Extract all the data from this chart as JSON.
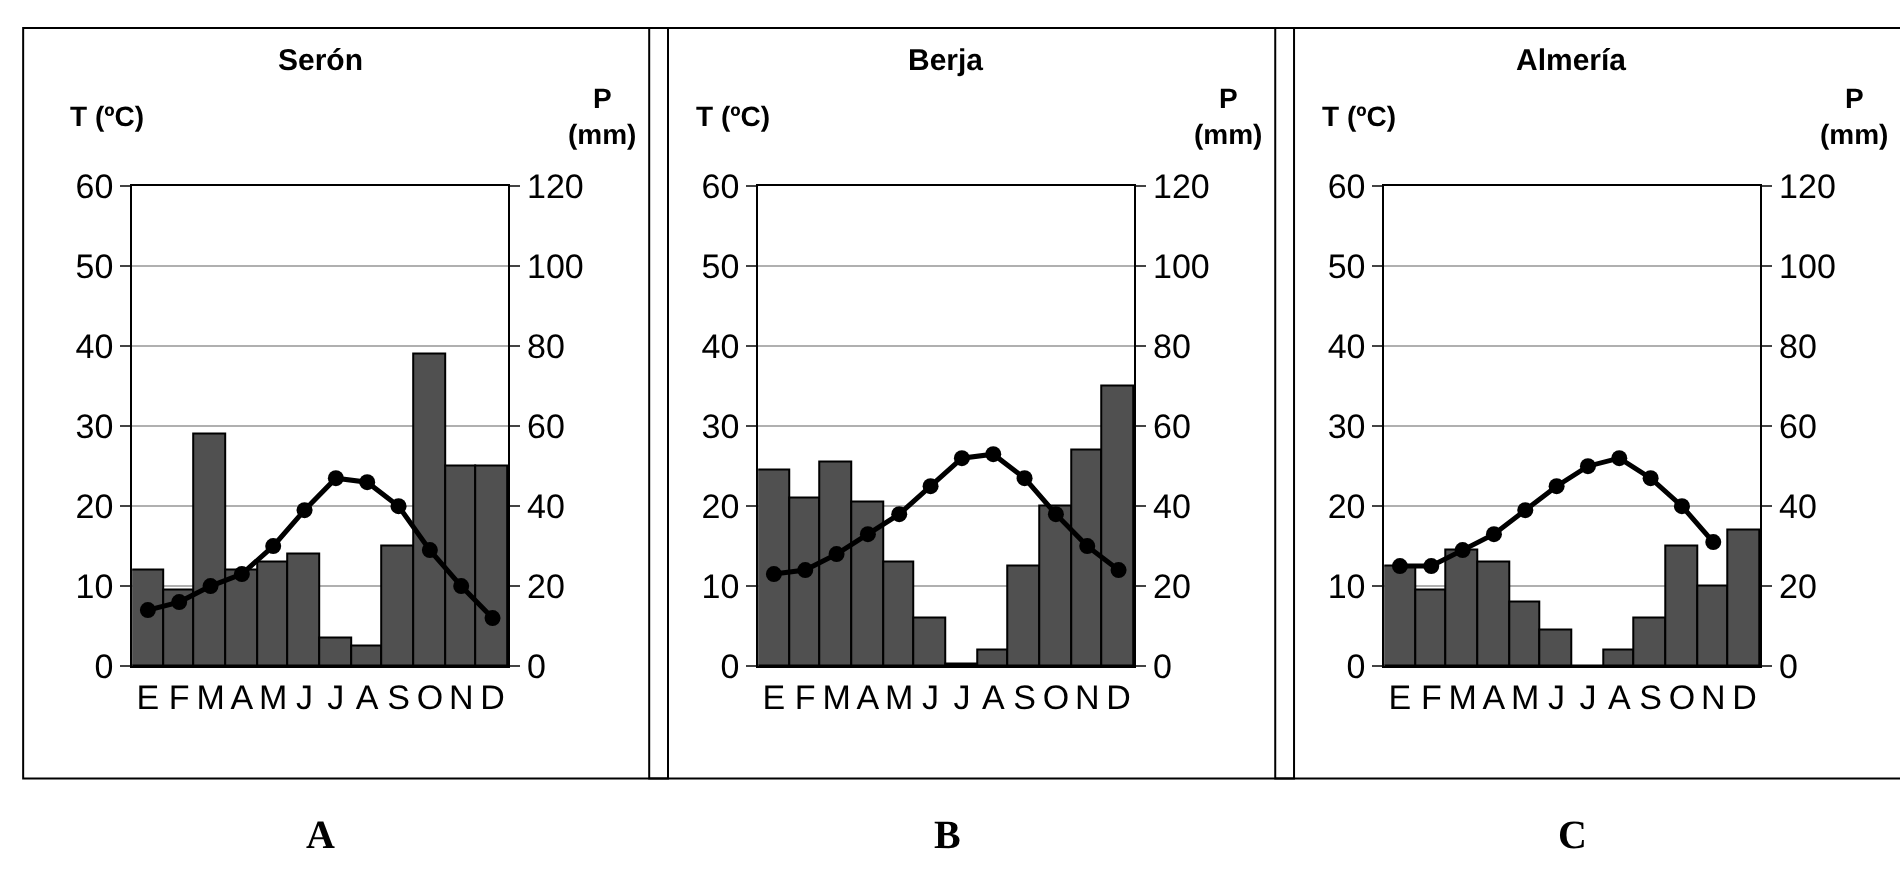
{
  "chart_data": [
    {
      "type": "bar",
      "title": "Serón",
      "ylabel": "T (ºC)",
      "y2label": "P (mm)",
      "annotations": [
        "A"
      ],
      "categories": [
        "E",
        "F",
        "M",
        "A",
        "M",
        "J",
        "J",
        "A",
        "S",
        "O",
        "N",
        "D"
      ],
      "ylim": [
        0,
        60
      ],
      "yticks": [
        0,
        10,
        20,
        30,
        40,
        50,
        60
      ],
      "y2lim": [
        0,
        120
      ],
      "y2ticks": [
        0,
        20,
        40,
        60,
        80,
        100,
        120
      ],
      "grid": "y",
      "series": [
        {
          "axis": "y2",
          "color": "#505050",
          "values": [
            24,
            19,
            58,
            24,
            26,
            28,
            7,
            5,
            30,
            78,
            50,
            50
          ]
        },
        {
          "type": "line",
          "color": "#000000",
          "marker": "circle",
          "values": [
            7,
            8,
            10,
            11.5,
            15,
            19.5,
            23.5,
            23,
            20,
            14.5,
            10,
            6
          ]
        }
      ]
    },
    {
      "type": "bar",
      "title": "Berja",
      "ylabel": "T (ºC)",
      "y2label": "P (mm)",
      "annotations": [
        "B"
      ],
      "categories": [
        "E",
        "F",
        "M",
        "A",
        "M",
        "J",
        "J",
        "A",
        "S",
        "O",
        "N",
        "D"
      ],
      "ylim": [
        0,
        60
      ],
      "yticks": [
        0,
        10,
        20,
        30,
        40,
        50,
        60
      ],
      "y2lim": [
        0,
        120
      ],
      "y2ticks": [
        0,
        20,
        40,
        60,
        80,
        100,
        120
      ],
      "grid": "y",
      "series": [
        {
          "axis": "y2",
          "color": "#505050",
          "values": [
            49,
            42,
            51,
            41,
            26,
            12,
            0.5,
            4,
            25,
            40,
            54,
            70
          ]
        },
        {
          "type": "line",
          "color": "#000000",
          "marker": "circle",
          "values": [
            11.5,
            12,
            14,
            16.5,
            19,
            22.5,
            26,
            26.5,
            23.5,
            19,
            15,
            12
          ]
        }
      ]
    },
    {
      "type": "bar",
      "title": "Almería",
      "ylabel": "T (ºC)",
      "y2label": "P (mm)",
      "annotations": [
        "C"
      ],
      "categories": [
        "E",
        "F",
        "M",
        "A",
        "M",
        "J",
        "J",
        "A",
        "S",
        "O",
        "N",
        "D"
      ],
      "ylim": [
        0,
        60
      ],
      "yticks": [
        0,
        10,
        20,
        30,
        40,
        50,
        60
      ],
      "y2lim": [
        0,
        120
      ],
      "y2ticks": [
        0,
        20,
        40,
        60,
        80,
        100,
        120
      ],
      "grid": "y",
      "series": [
        {
          "axis": "y2",
          "color": "#505050",
          "values": [
            25,
            19,
            29,
            26,
            16,
            9,
            0,
            4,
            12,
            30,
            20,
            34
          ]
        },
        {
          "type": "line",
          "color": "#000000",
          "marker": "circle",
          "values": [
            12.5,
            12.5,
            14.5,
            16.5,
            19.5,
            22.5,
            25,
            26,
            23.5,
            20,
            15.5,
            null
          ]
        }
      ]
    }
  ]
}
